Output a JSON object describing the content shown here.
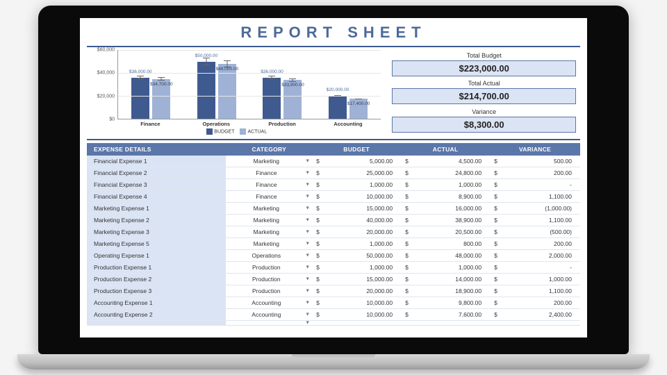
{
  "title": "REPORT SHEET",
  "colors": {
    "primary": "#5b76a8",
    "header_bg": "#5b76a8",
    "header_text": "#ffffff",
    "accent_fill": "#dbe4f4",
    "title_text": "#4e6a9b",
    "rule": "#3a5890",
    "grid": "#e6e6e6",
    "axis": "#999999",
    "page_bg": "#ffffff"
  },
  "summary": {
    "total_budget": {
      "label": "Total Budget",
      "value": "$223,000.00"
    },
    "total_actual": {
      "label": "Total Actual",
      "value": "$214,700.00"
    },
    "variance": {
      "label": "Variance",
      "value": "$8,300.00"
    }
  },
  "chart": {
    "type": "grouped-bar",
    "y_max": 60000,
    "y_ticks": [
      {
        "v": 0,
        "label": "$0"
      },
      {
        "v": 20000,
        "label": "$20,000"
      },
      {
        "v": 40000,
        "label": "$40,000"
      },
      {
        "v": 60000,
        "label": "$60,000"
      }
    ],
    "series": [
      {
        "name": "BUDGET",
        "color": "#3f5a8f"
      },
      {
        "name": "ACTUAL",
        "color": "#9fb2d6"
      }
    ],
    "error_bar_pct": 0.08,
    "categories": [
      {
        "label": "Finance",
        "budget": 36000,
        "actual": 34700,
        "budget_label": "$36,000.00",
        "actual_label": "$34,700.00"
      },
      {
        "label": "Operations",
        "budget": 50000,
        "actual": 48000,
        "budget_label": "$50,000.00",
        "actual_label": "$48,000.00"
      },
      {
        "label": "Production",
        "budget": 36000,
        "actual": 33900,
        "budget_label": "$36,000.00",
        "actual_label": "$33,900.00"
      },
      {
        "label": "Accounting",
        "budget": 20000,
        "actual": 17400,
        "budget_label": "$20,000.00",
        "actual_label": "$17,400.00"
      }
    ]
  },
  "table": {
    "headers": {
      "details": "EXPENSE DETAILS",
      "category": "CATEGORY",
      "budget": "BUDGET",
      "actual": "ACTUAL",
      "variance": "VARIANCE"
    },
    "currency": "$",
    "rows": [
      {
        "name": "Financial Expense 1",
        "category": "Marketing",
        "budget": "5,000.00",
        "actual": "4,500.00",
        "variance": "500.00"
      },
      {
        "name": "Financial Expense 2",
        "category": "Finance",
        "budget": "25,000.00",
        "actual": "24,800.00",
        "variance": "200.00"
      },
      {
        "name": "Financial Expense 3",
        "category": "Finance",
        "budget": "1,000.00",
        "actual": "1,000.00",
        "variance": "-"
      },
      {
        "name": "Financial Expense 4",
        "category": "Finance",
        "budget": "10,000.00",
        "actual": "8,900.00",
        "variance": "1,100.00"
      },
      {
        "name": "Marketing Expense 1",
        "category": "Marketing",
        "budget": "15,000.00",
        "actual": "16,000.00",
        "variance": "(1,000.00)"
      },
      {
        "name": "Marketing Expense 2",
        "category": "Marketing",
        "budget": "40,000.00",
        "actual": "38,900.00",
        "variance": "1,100.00"
      },
      {
        "name": "Marketing Expense 3",
        "category": "Marketing",
        "budget": "20,000.00",
        "actual": "20,500.00",
        "variance": "(500.00)"
      },
      {
        "name": "Marketing Expense 5",
        "category": "Marketing",
        "budget": "1,000.00",
        "actual": "800.00",
        "variance": "200.00"
      },
      {
        "name": "Operating Expense 1",
        "category": "Operations",
        "budget": "50,000.00",
        "actual": "48,000.00",
        "variance": "2,000.00"
      },
      {
        "name": "Production Expense 1",
        "category": "Production",
        "budget": "1,000.00",
        "actual": "1,000.00",
        "variance": "-"
      },
      {
        "name": "Production Expense 2",
        "category": "Production",
        "budget": "15,000.00",
        "actual": "14,000.00",
        "variance": "1,000.00"
      },
      {
        "name": "Production Expense 3",
        "category": "Production",
        "budget": "20,000.00",
        "actual": "18,900.00",
        "variance": "1,100.00"
      },
      {
        "name": "Accounting Expense 1",
        "category": "Accounting",
        "budget": "10,000.00",
        "actual": "9,800.00",
        "variance": "200.00"
      },
      {
        "name": "Accounting Expense 2",
        "category": "Accounting",
        "budget": "10,000.00",
        "actual": "7,600.00",
        "variance": "2,400.00"
      }
    ]
  }
}
